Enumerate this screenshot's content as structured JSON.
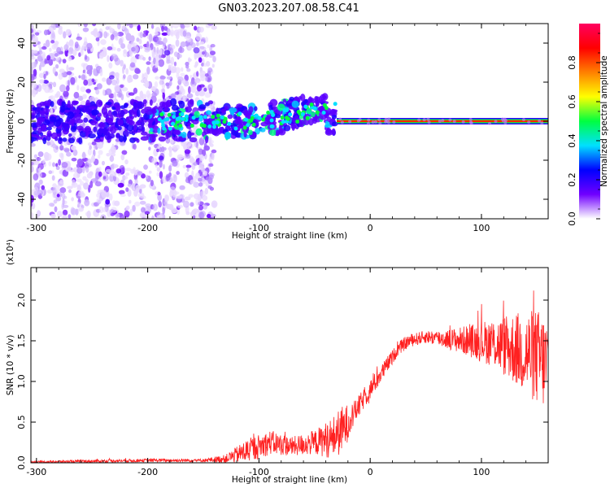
{
  "title": "GN03.2023.207.08.58.C41",
  "colors": {
    "snr_line": "#ff2020",
    "background": "#ffffff",
    "frame": "#000000"
  },
  "chart_data": [
    {
      "type": "heatmap",
      "xlabel": "Height of straight line (km)",
      "ylabel": "Frequency (Hz)",
      "xlim": [
        -305,
        160
      ],
      "ylim": [
        -50,
        50
      ],
      "x_ticks": [
        -300,
        -200,
        -100,
        0,
        100
      ],
      "y_ticks": [
        -40,
        -20,
        0,
        20,
        40
      ],
      "colorbar": {
        "label": "Normalized spectral amplitude",
        "range": [
          0.0,
          1.0
        ],
        "ticks": [
          "0.0",
          "0.2",
          "0.4",
          "0.6",
          "0.8"
        ],
        "colormap": [
          "#ffffff",
          "#7000ff",
          "#0000ff",
          "#00e0ff",
          "#00ff40",
          "#ffff00",
          "#ff8000",
          "#ff0000",
          "#ff0060"
        ]
      },
      "description_points": {
        "noise_band_x": [
          -305,
          -140
        ],
        "signal_trace_x": [
          -140,
          160
        ],
        "steady_line_x": [
          -30,
          160
        ],
        "steady_line_frequency": 0
      }
    },
    {
      "type": "line",
      "xlabel": "Height of straight line (km)",
      "ylabel": "SNR (10 * v/v)",
      "y_multiplier": "(x10⁴)",
      "xlim": [
        -305,
        160
      ],
      "ylim": [
        0,
        2.4
      ],
      "x_ticks": [
        -300,
        -200,
        -100,
        0,
        100
      ],
      "y_ticks": [
        "0.0",
        "0.5",
        "1.0",
        "1.5",
        "2.0"
      ],
      "series": [
        {
          "x": [
            -305,
            -250,
            -200,
            -150,
            -130,
            -110,
            -90,
            -70,
            -50,
            -35,
            -25,
            -15,
            -5,
            5,
            15,
            25,
            35,
            50,
            70,
            90,
            110,
            130,
            150,
            160
          ],
          "y": [
            0.01,
            0.02,
            0.03,
            0.03,
            0.05,
            0.15,
            0.25,
            0.2,
            0.25,
            0.3,
            0.4,
            0.6,
            0.8,
            1.0,
            1.2,
            1.4,
            1.5,
            1.55,
            1.52,
            1.5,
            1.48,
            1.4,
            1.3,
            1.2
          ],
          "spread": [
            0.01,
            0.02,
            0.02,
            0.02,
            0.05,
            0.15,
            0.15,
            0.12,
            0.15,
            0.25,
            0.3,
            0.15,
            0.12,
            0.12,
            0.1,
            0.08,
            0.08,
            0.08,
            0.12,
            0.2,
            0.3,
            0.45,
            0.6,
            0.6
          ]
        }
      ]
    }
  ]
}
